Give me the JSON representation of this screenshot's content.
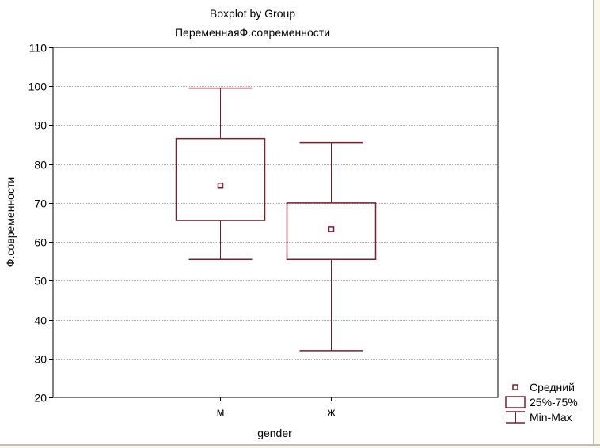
{
  "chart_data": {
    "type": "boxplot",
    "title": "Boxplot by Group",
    "subtitle": "ПеременнаяФ.современности",
    "xlabel": "gender",
    "ylabel": "Ф.современности",
    "ylim": [
      20,
      110
    ],
    "yticks": [
      20,
      30,
      40,
      50,
      60,
      70,
      80,
      90,
      100,
      110
    ],
    "grid": true,
    "categories": [
      "м",
      "ж"
    ],
    "boxes": [
      {
        "category": "м",
        "min": 55.5,
        "q1": 65.5,
        "mean": 74.5,
        "q3": 86.5,
        "max": 99.5
      },
      {
        "category": "ж",
        "min": 32,
        "q1": 55.5,
        "mean": 63.3,
        "q3": 70,
        "max": 85.5
      }
    ],
    "legend": {
      "position": "bottom-right",
      "entries": [
        {
          "symbol": "mean",
          "label": "Средний"
        },
        {
          "symbol": "box",
          "label": "25%-75%"
        },
        {
          "symbol": "whisker",
          "label": "Min-Max"
        }
      ]
    },
    "colors": {
      "box": "#7a1f2b",
      "grid": "#a8a8a8",
      "frame": "#000000",
      "background": "#ffffff"
    }
  }
}
